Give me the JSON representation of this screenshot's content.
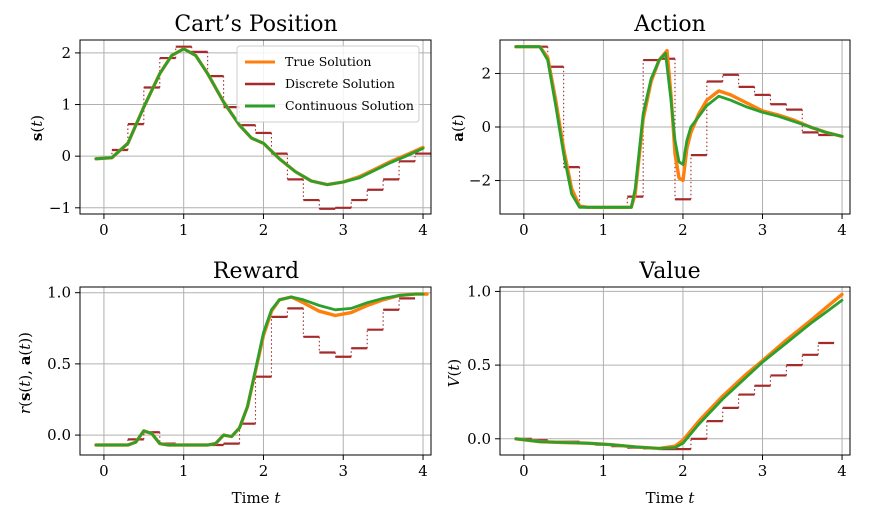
{
  "colors": {
    "true": "#ff7f0e",
    "discrete": "#a52a2a",
    "continuous": "#2ca02c",
    "grid": "#b0b0b0"
  },
  "legend": {
    "true": "True Solution",
    "discrete": "Discrete Solution",
    "continuous": "Continuous Solution"
  },
  "chart_data": [
    {
      "type": "line",
      "title": "Cart’s Position",
      "xlabel": "",
      "ylabel": "s(t)",
      "xlim": [
        -0.3,
        4.1
      ],
      "ylim": [
        -1.12,
        2.25
      ],
      "xticks": [
        0,
        1,
        2,
        3,
        4
      ],
      "yticks": [
        -1,
        0,
        1,
        2
      ],
      "grid": true,
      "legend": "top-right",
      "series": [
        {
          "key": "true",
          "kind": "line",
          "x": [
            -0.1,
            0.1,
            0.3,
            0.5,
            0.7,
            0.85,
            1.0,
            1.15,
            1.3,
            1.5,
            1.7,
            1.85,
            2.0,
            2.2,
            2.4,
            2.6,
            2.8,
            3.0,
            3.2,
            3.4,
            3.6,
            3.8,
            4.0
          ],
          "y": [
            -0.05,
            -0.03,
            0.25,
            0.95,
            1.6,
            1.95,
            2.08,
            1.95,
            1.6,
            1.05,
            0.6,
            0.35,
            0.25,
            -0.05,
            -0.3,
            -0.48,
            -0.55,
            -0.5,
            -0.4,
            -0.25,
            -0.1,
            0.03,
            0.17
          ]
        },
        {
          "key": "continuous",
          "kind": "line",
          "x": [
            -0.1,
            0.1,
            0.3,
            0.5,
            0.7,
            0.85,
            1.0,
            1.15,
            1.3,
            1.5,
            1.7,
            1.85,
            2.0,
            2.2,
            2.4,
            2.6,
            2.8,
            3.0,
            3.2,
            3.4,
            3.6,
            3.8,
            4.0
          ],
          "y": [
            -0.05,
            -0.03,
            0.25,
            0.95,
            1.6,
            1.95,
            2.08,
            1.95,
            1.6,
            1.05,
            0.6,
            0.35,
            0.25,
            -0.05,
            -0.3,
            -0.48,
            -0.55,
            -0.5,
            -0.42,
            -0.27,
            -0.12,
            0.01,
            0.15
          ]
        },
        {
          "key": "discrete",
          "kind": "step",
          "dt": 0.2,
          "x": [
            -0.1,
            0.1,
            0.3,
            0.5,
            0.7,
            0.9,
            1.1,
            1.3,
            1.5,
            1.7,
            1.9,
            2.1,
            2.3,
            2.5,
            2.7,
            2.9,
            3.1,
            3.3,
            3.5,
            3.7,
            3.9
          ],
          "y": [
            -0.04,
            0.12,
            0.62,
            1.33,
            1.9,
            2.12,
            2.02,
            1.55,
            0.95,
            0.6,
            0.45,
            0.05,
            -0.45,
            -0.85,
            -1.02,
            -1.0,
            -0.85,
            -0.65,
            -0.45,
            -0.1,
            0.05
          ]
        }
      ]
    },
    {
      "type": "line",
      "title": "Action",
      "xlabel": "",
      "ylabel": "a(t)",
      "xlim": [
        -0.3,
        4.1
      ],
      "ylim": [
        -3.25,
        3.25
      ],
      "xticks": [
        0,
        1,
        2,
        3,
        4
      ],
      "yticks": [
        -2,
        0,
        2
      ],
      "grid": true,
      "series": [
        {
          "key": "true",
          "kind": "line",
          "x": [
            -0.1,
            0.2,
            0.3,
            0.4,
            0.5,
            0.6,
            0.7,
            0.8,
            1.0,
            1.2,
            1.35,
            1.4,
            1.5,
            1.6,
            1.7,
            1.8,
            1.85,
            1.9,
            1.95,
            2.0,
            2.05,
            2.1,
            2.2,
            2.3,
            2.45,
            2.6,
            2.8,
            3.0,
            3.2,
            3.4,
            3.6,
            3.8,
            4.0
          ],
          "y": [
            3.0,
            3.0,
            2.6,
            1.0,
            -0.8,
            -2.3,
            -2.95,
            -3.0,
            -3.0,
            -3.0,
            -3.0,
            -2.5,
            0.3,
            1.7,
            2.5,
            2.85,
            1.2,
            -1.0,
            -1.9,
            -2.0,
            -0.8,
            -0.2,
            0.5,
            1.0,
            1.35,
            1.2,
            0.9,
            0.6,
            0.45,
            0.25,
            0.0,
            -0.2,
            -0.35
          ]
        },
        {
          "key": "continuous",
          "kind": "line",
          "x": [
            -0.1,
            0.2,
            0.3,
            0.4,
            0.5,
            0.6,
            0.7,
            0.8,
            1.0,
            1.2,
            1.35,
            1.4,
            1.5,
            1.6,
            1.7,
            1.78,
            1.85,
            1.9,
            1.95,
            2.0,
            2.05,
            2.1,
            2.2,
            2.3,
            2.45,
            2.6,
            2.8,
            3.0,
            3.2,
            3.4,
            3.6,
            3.8,
            4.0
          ],
          "y": [
            3.0,
            3.0,
            2.5,
            0.8,
            -1.0,
            -2.5,
            -3.0,
            -3.0,
            -3.0,
            -3.0,
            -3.0,
            -2.3,
            0.5,
            1.8,
            2.5,
            2.75,
            1.0,
            -0.5,
            -1.3,
            -1.4,
            -0.5,
            0.0,
            0.4,
            0.8,
            1.15,
            1.0,
            0.75,
            0.55,
            0.4,
            0.2,
            0.0,
            -0.2,
            -0.35
          ]
        },
        {
          "key": "discrete",
          "kind": "step",
          "dt": 0.2,
          "x": [
            -0.1,
            0.1,
            0.3,
            0.5,
            0.7,
            0.9,
            1.1,
            1.3,
            1.5,
            1.7,
            1.9,
            2.1,
            2.3,
            2.5,
            2.7,
            2.9,
            3.1,
            3.3,
            3.5,
            3.7
          ],
          "y": [
            3.0,
            3.0,
            2.25,
            -1.5,
            -3.0,
            -3.0,
            -3.0,
            -2.6,
            2.5,
            2.55,
            -2.7,
            -1.05,
            1.7,
            1.95,
            1.5,
            1.2,
            0.85,
            0.65,
            -0.2,
            -0.3
          ]
        }
      ]
    },
    {
      "type": "line",
      "title": "Reward",
      "xlabel": "Time t",
      "ylabel": "r(s(t), a(t))",
      "xlim": [
        -0.3,
        4.1
      ],
      "ylim": [
        -0.14,
        1.04
      ],
      "xticks": [
        0,
        1,
        2,
        3,
        4
      ],
      "yticks": [
        0.0,
        0.5,
        1.0
      ],
      "grid": true,
      "series": [
        {
          "key": "true",
          "kind": "line",
          "x": [
            -0.1,
            0.3,
            0.4,
            0.5,
            0.6,
            0.7,
            0.8,
            1.0,
            1.3,
            1.4,
            1.5,
            1.6,
            1.7,
            1.8,
            1.9,
            2.0,
            2.1,
            2.2,
            2.35,
            2.5,
            2.7,
            2.9,
            3.1,
            3.3,
            3.5,
            3.7,
            3.9,
            4.05
          ],
          "y": [
            -0.07,
            -0.07,
            -0.05,
            0.03,
            0.01,
            -0.06,
            -0.07,
            -0.07,
            -0.07,
            -0.06,
            0.0,
            -0.01,
            0.05,
            0.2,
            0.45,
            0.7,
            0.87,
            0.95,
            0.97,
            0.93,
            0.87,
            0.84,
            0.86,
            0.91,
            0.95,
            0.98,
            0.99,
            0.99
          ]
        },
        {
          "key": "continuous",
          "kind": "line",
          "x": [
            -0.1,
            0.3,
            0.4,
            0.5,
            0.6,
            0.7,
            0.8,
            1.0,
            1.3,
            1.4,
            1.5,
            1.6,
            1.7,
            1.8,
            1.9,
            2.0,
            2.1,
            2.2,
            2.35,
            2.5,
            2.7,
            2.9,
            3.1,
            3.3,
            3.5,
            3.7,
            3.9,
            4.0
          ],
          "y": [
            -0.07,
            -0.07,
            -0.05,
            0.03,
            0.01,
            -0.06,
            -0.07,
            -0.07,
            -0.07,
            -0.06,
            0.0,
            -0.01,
            0.05,
            0.2,
            0.46,
            0.72,
            0.88,
            0.95,
            0.97,
            0.95,
            0.91,
            0.88,
            0.89,
            0.93,
            0.96,
            0.98,
            0.99,
            0.99
          ]
        },
        {
          "key": "discrete",
          "kind": "step",
          "dt": 0.2,
          "x": [
            -0.1,
            0.1,
            0.3,
            0.5,
            0.7,
            0.9,
            1.1,
            1.3,
            1.5,
            1.7,
            1.9,
            2.1,
            2.3,
            2.5,
            2.7,
            2.9,
            3.1,
            3.3,
            3.5,
            3.7
          ],
          "y": [
            -0.07,
            -0.07,
            -0.03,
            0.02,
            -0.06,
            -0.07,
            -0.07,
            -0.07,
            -0.06,
            0.08,
            0.41,
            0.83,
            0.89,
            0.69,
            0.58,
            0.55,
            0.61,
            0.74,
            0.88,
            0.96
          ]
        }
      ]
    },
    {
      "type": "line",
      "title": "Value",
      "xlabel": "Time t",
      "ylabel": "V(t)",
      "xlim": [
        -0.3,
        4.1
      ],
      "ylim": [
        -0.11,
        1.03
      ],
      "xticks": [
        0,
        1,
        2,
        3,
        4
      ],
      "yticks": [
        0.0,
        0.5,
        1.0
      ],
      "grid": true,
      "series": [
        {
          "key": "true",
          "kind": "line",
          "x": [
            -0.1,
            0.2,
            0.5,
            0.8,
            1.1,
            1.4,
            1.7,
            1.9,
            2.0,
            2.2,
            2.5,
            2.8,
            3.0,
            3.3,
            3.6,
            3.8,
            4.0
          ],
          "y": [
            0.0,
            -0.02,
            -0.025,
            -0.03,
            -0.04,
            -0.055,
            -0.065,
            -0.05,
            -0.01,
            0.12,
            0.29,
            0.44,
            0.53,
            0.67,
            0.8,
            0.89,
            0.98
          ]
        },
        {
          "key": "continuous",
          "kind": "line",
          "x": [
            -0.1,
            0.2,
            0.5,
            0.8,
            1.1,
            1.4,
            1.7,
            1.9,
            2.0,
            2.2,
            2.5,
            2.8,
            3.0,
            3.3,
            3.6,
            3.8,
            4.0
          ],
          "y": [
            0.0,
            -0.02,
            -0.025,
            -0.03,
            -0.04,
            -0.055,
            -0.065,
            -0.06,
            -0.03,
            0.1,
            0.27,
            0.42,
            0.52,
            0.65,
            0.78,
            0.86,
            0.94
          ]
        },
        {
          "key": "discrete",
          "kind": "step",
          "dt": 0.2,
          "x": [
            -0.1,
            0.1,
            0.3,
            0.5,
            0.7,
            0.9,
            1.1,
            1.3,
            1.5,
            1.7,
            1.9,
            2.1,
            2.3,
            2.5,
            2.7,
            2.9,
            3.1,
            3.3,
            3.5,
            3.7
          ],
          "y": [
            0.0,
            -0.01,
            -0.02,
            -0.02,
            -0.03,
            -0.04,
            -0.05,
            -0.06,
            -0.065,
            -0.07,
            -0.07,
            0.0,
            0.12,
            0.21,
            0.3,
            0.36,
            0.43,
            0.5,
            0.57,
            0.65
          ]
        }
      ]
    }
  ]
}
